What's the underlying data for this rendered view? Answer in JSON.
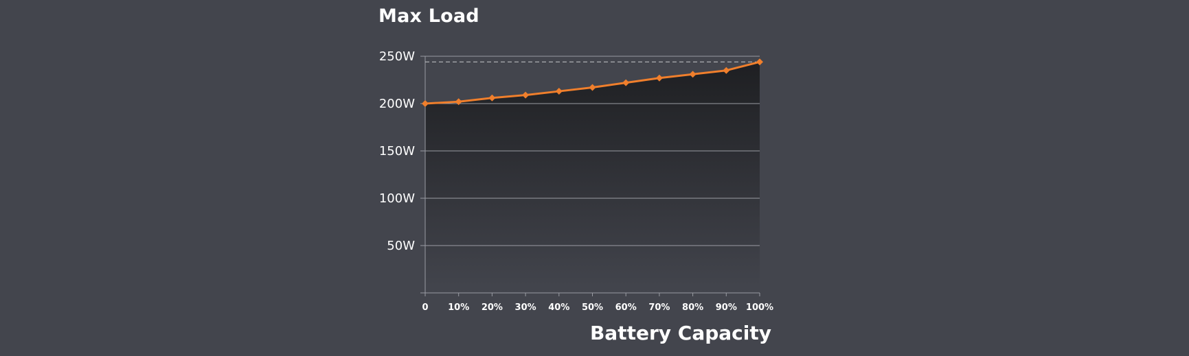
{
  "chart_data": {
    "type": "area",
    "title": "Max Load",
    "xlabel": "Battery Capacity",
    "ylabel": "",
    "x": [
      "0",
      "10%",
      "20%",
      "30%",
      "40%",
      "50%",
      "60%",
      "70%",
      "80%",
      "90%",
      "100%"
    ],
    "y_ticks": [
      "50W",
      "100W",
      "150W",
      "200W",
      "250W"
    ],
    "ylim": [
      0,
      250
    ],
    "series": [
      {
        "values": [
          200,
          202,
          206,
          209,
          213,
          217,
          222,
          227,
          231,
          235,
          244
        ]
      }
    ],
    "reference_line": 244,
    "grid": true,
    "colors": {
      "line": "#f07f2c",
      "background": "#43454d",
      "grid": "#9a9ca3",
      "fill_top": "#1e1f22",
      "fill_bottom": "#43454d",
      "reference": "#c8c9cd"
    }
  }
}
